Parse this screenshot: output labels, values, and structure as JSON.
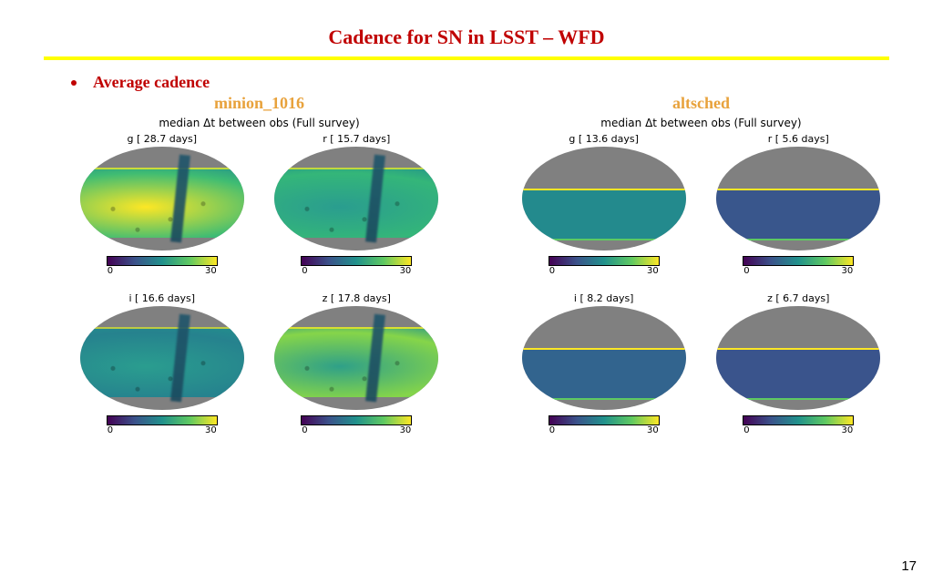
{
  "title": "Cadence for SN in LSST – WFD",
  "bullet": "Average cadence",
  "page_number": "17",
  "palette": {
    "title_color": "#c00000",
    "underline_color": "#ffff00",
    "column_title_color": "#e8a23c",
    "viridis_stops": [
      "#440154",
      "#3b528b",
      "#21918c",
      "#5ec962",
      "#fde725"
    ],
    "mask_gray": "#808080"
  },
  "colorbar": {
    "min": "0",
    "max": "30"
  },
  "columns": [
    {
      "name": "minion_1016",
      "subtitle": "median Δt between obs (Full survey)",
      "style": "textured",
      "panels": [
        {
          "band": "g",
          "days": "28.7",
          "label": "g [ 28.7 days]",
          "dominant_color": "#fde725",
          "secondary_color": "#3fbc73",
          "band_top_pct": 20,
          "band_bottom_pct": 12
        },
        {
          "band": "r",
          "days": "15.7",
          "label": "r [ 15.7 days]",
          "dominant_color": "#2a9d8f",
          "secondary_color": "#34b679",
          "band_top_pct": 20,
          "band_bottom_pct": 12
        },
        {
          "band": "i",
          "days": "16.6",
          "label": "i [ 16.6 days]",
          "dominant_color": "#2a9d8f",
          "secondary_color": "#26828e",
          "band_top_pct": 20,
          "band_bottom_pct": 12
        },
        {
          "band": "z",
          "days": "17.8",
          "label": "z [ 17.8 days]",
          "dominant_color": "#2fa088",
          "secondary_color": "#86d549",
          "band_top_pct": 20,
          "band_bottom_pct": 12
        }
      ]
    },
    {
      "name": "altsched",
      "subtitle": "median Δt between obs (Full survey)",
      "style": "smooth",
      "panels": [
        {
          "band": "g",
          "days": "13.6",
          "label": "g [ 13.6 days]",
          "dominant_color": "#238a8d",
          "secondary_color": "#238a8d",
          "band_top_pct": 40,
          "band_bottom_pct": 10
        },
        {
          "band": "r",
          "days": "5.6",
          "label": "r [  5.6 days]",
          "dominant_color": "#39568c",
          "secondary_color": "#39568c",
          "band_top_pct": 40,
          "band_bottom_pct": 10
        },
        {
          "band": "i",
          "days": "8.2",
          "label": "i [  8.2 days]",
          "dominant_color": "#32648e",
          "secondary_color": "#32648e",
          "band_top_pct": 40,
          "band_bottom_pct": 10
        },
        {
          "band": "z",
          "days": "6.7",
          "label": "z [  6.7 days]",
          "dominant_color": "#3a548c",
          "secondary_color": "#3a548c",
          "band_top_pct": 40,
          "band_bottom_pct": 10
        }
      ]
    }
  ]
}
